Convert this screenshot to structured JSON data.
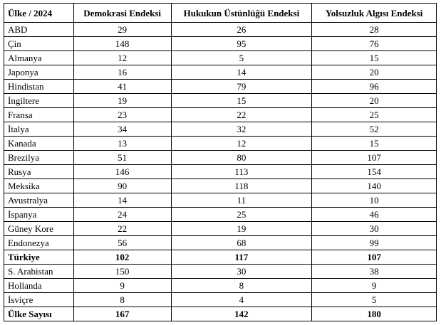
{
  "table": {
    "header": [
      "Ülke / 2024",
      "Demokrasi Endeksi",
      "Hukukun Üstünlüğü Endeksi",
      "Yolsuzluk Algısı Endeksi"
    ],
    "rows": [
      [
        "ABD",
        29,
        26,
        28
      ],
      [
        "Çin",
        148,
        95,
        76
      ],
      [
        "Almanya",
        12,
        5,
        15
      ],
      [
        "Japonya",
        16,
        14,
        20
      ],
      [
        "Hindistan",
        41,
        79,
        96
      ],
      [
        "İngiltere",
        19,
        15,
        20
      ],
      [
        "Fransa",
        23,
        22,
        25
      ],
      [
        "İtalya",
        34,
        32,
        52
      ],
      [
        "Kanada",
        13,
        12,
        15
      ],
      [
        "Brezilya",
        51,
        80,
        107
      ],
      [
        "Rusya",
        146,
        113,
        154
      ],
      [
        "Meksika",
        90,
        118,
        140
      ],
      [
        "Avustralya",
        14,
        11,
        10
      ],
      [
        "İspanya",
        24,
        25,
        46
      ],
      [
        "Güney Kore",
        22,
        19,
        30
      ],
      [
        "Endonezya",
        56,
        68,
        99
      ],
      [
        "Türkiye",
        102,
        117,
        107
      ],
      [
        "S. Arabistan",
        150,
        30,
        38
      ],
      [
        "Hollanda",
        9,
        8,
        9
      ],
      [
        "İsviçre",
        8,
        4,
        5
      ],
      [
        "Ülke Sayısı",
        167,
        142,
        180
      ]
    ]
  }
}
